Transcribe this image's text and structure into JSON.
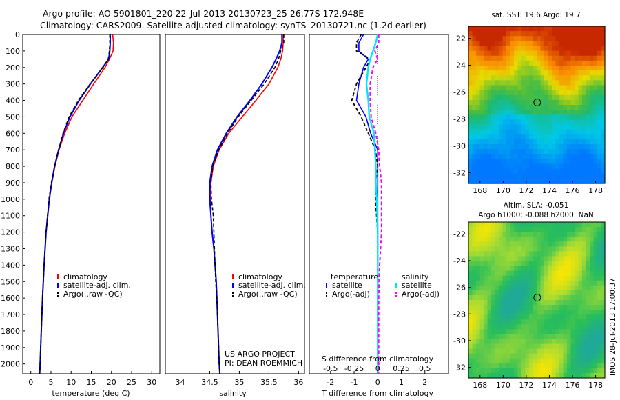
{
  "header": {
    "line1": "Argo profile: AO 5901801_220 22-Jul-2013 20130723_25 26.77S 172.948E",
    "line2": "Climatology: CARS2009. Satellite-adjusted climatology: synTS_20130721.nc (1.2d earlier)"
  },
  "colors": {
    "climatology": "#ff0000",
    "satellite": "#0000ff",
    "argo": "#000000",
    "sat_salinity": "#00e5ff",
    "argo_salinity_adj": "#ff00ff"
  },
  "depth_axis": {
    "ticks": [
      "0",
      "100",
      "200",
      "300",
      "400",
      "500",
      "600",
      "700",
      "800",
      "900",
      "1000",
      "1100",
      "1200",
      "1300",
      "1400",
      "1500",
      "1600",
      "1700",
      "1800",
      "1900",
      "2000"
    ],
    "ylim": [
      0,
      2060
    ],
    "reversed": true
  },
  "panels": {
    "temperature": {
      "xlabel": "temperature (deg C)",
      "xticks": [
        "0",
        "5",
        "10",
        "15",
        "20",
        "25",
        "30"
      ],
      "legend": [
        "climatology",
        "satellite-adj. clim.",
        "Argo(..raw -QC)"
      ]
    },
    "salinity": {
      "xlabel": "salinity",
      "xticks": [
        "34",
        "34.5",
        "35",
        "35.5",
        "36"
      ],
      "legend": [
        "climatology",
        "satellite-adj. clim.",
        "Argo(..raw -QC)"
      ],
      "credit1": "US ARGO PROJECT",
      "credit2": "PI: DEAN ROEMMICH"
    },
    "difference": {
      "top_label": "S difference from climatology",
      "top_ticks": [
        "-0.5",
        "-0.25",
        "0",
        "0.25",
        "0.5"
      ],
      "bottom_ticks": [
        "-2",
        "-1",
        "0",
        "1",
        "2"
      ],
      "xlabel": "T difference from climatology",
      "legend_temp_title": "temperature",
      "legend_sal_title": "salinity",
      "legend_satellite": "satellite",
      "legend_argo": "Argo(-adj)"
    }
  },
  "maps": {
    "sst_title": "sat. SST: 19.6 Argo: 19.7",
    "sla_title1": "Altim. SLA: -0.051",
    "sla_title2": "Argo h1000: -0.088 h2000: NaN",
    "xticks": [
      "168",
      "170",
      "172",
      "174",
      "176",
      "178"
    ],
    "yticks": [
      "-22",
      "-24",
      "-26",
      "-28",
      "-30",
      "-32"
    ],
    "side_label": "IMOS 28-Jul-2013 17:00:37"
  },
  "chart_data": [
    {
      "type": "line",
      "title": "",
      "xlabel": "temperature (deg C)",
      "ylabel": "",
      "xlim": [
        -2,
        32
      ],
      "ylim": [
        2060,
        0
      ],
      "depth": [
        0,
        50,
        100,
        150,
        200,
        300,
        400,
        500,
        600,
        700,
        800,
        900,
        1000,
        1200,
        1400,
        1600,
        1800,
        2000,
        2060
      ],
      "series": [
        {
          "name": "climatology",
          "values": [
            20.3,
            20.5,
            20.4,
            19.5,
            18.4,
            15.6,
            12.9,
            10.2,
            8.4,
            7.0,
            6.0,
            5.2,
            4.6,
            3.8,
            3.3,
            2.9,
            2.6,
            2.3,
            2.2
          ]
        },
        {
          "name": "satellite-adj. clim.",
          "values": [
            19.7,
            19.7,
            19.6,
            19.3,
            17.8,
            14.8,
            12.0,
            9.7,
            8.1,
            6.9,
            5.9,
            5.2,
            4.6,
            3.8,
            3.3,
            2.9,
            2.6,
            2.3,
            2.2
          ]
        },
        {
          "name": "Argo(..raw -QC)",
          "values": [
            19.6,
            19.6,
            19.5,
            19.2,
            17.9,
            14.7,
            11.8,
            9.5,
            8.0,
            6.9,
            5.9,
            5.1,
            4.5,
            3.8,
            3.3,
            2.9,
            2.6,
            2.3,
            2.2
          ]
        }
      ]
    },
    {
      "type": "line",
      "title": "",
      "xlabel": "salinity",
      "ylabel": "",
      "xlim": [
        33.75,
        36.1
      ],
      "ylim": [
        2060,
        0
      ],
      "depth": [
        0,
        50,
        100,
        150,
        200,
        300,
        400,
        500,
        600,
        700,
        800,
        900,
        1000,
        1100,
        1200,
        1300,
        1400,
        1500,
        1600,
        1800,
        2000,
        2060
      ],
      "series": [
        {
          "name": "climatology",
          "values": [
            35.74,
            35.74,
            35.73,
            35.7,
            35.65,
            35.5,
            35.28,
            35.05,
            34.82,
            34.66,
            34.56,
            34.52,
            34.51,
            34.52,
            34.54,
            34.57,
            34.59,
            34.61,
            34.62,
            34.64,
            34.66,
            34.67
          ]
        },
        {
          "name": "satellite-adj. clim.",
          "values": [
            35.72,
            35.72,
            35.68,
            35.62,
            35.55,
            35.38,
            35.18,
            34.96,
            34.78,
            34.63,
            34.54,
            34.5,
            34.5,
            34.52,
            34.54,
            34.57,
            34.59,
            34.61,
            34.62,
            34.64,
            34.66,
            34.67
          ]
        },
        {
          "name": "Argo(..raw -QC)",
          "values": [
            35.75,
            35.75,
            35.7,
            35.66,
            35.6,
            35.42,
            35.2,
            34.98,
            34.8,
            34.65,
            34.55,
            34.52,
            34.53,
            34.56,
            34.57,
            34.58,
            34.59,
            34.6,
            34.62,
            34.64,
            34.66,
            34.67
          ]
        }
      ]
    },
    {
      "type": "line",
      "title": "",
      "xlabel": "T difference from climatology",
      "ylabel": "",
      "xlim": [
        -2.9,
        3.0
      ],
      "ylim": [
        2060,
        0
      ],
      "depth": [
        0,
        50,
        100,
        150,
        200,
        300,
        400,
        500,
        600,
        700,
        800,
        900,
        1000,
        1200,
        1400,
        1600,
        1800,
        2000,
        2060
      ],
      "series": [
        {
          "name": "temperature satellite",
          "values": [
            -0.6,
            -0.8,
            -0.8,
            -0.4,
            -0.6,
            -0.8,
            -0.9,
            -0.5,
            -0.3,
            0,
            0,
            0,
            0,
            0,
            0,
            0,
            0,
            0,
            0
          ]
        },
        {
          "name": "temperature Argo(-adj)",
          "values": [
            -0.7,
            -0.9,
            -0.9,
            -0.3,
            -0.5,
            -0.9,
            -1.1,
            -0.7,
            -0.4,
            -0.1,
            0,
            -0.1,
            -0.1,
            0,
            0,
            0,
            0,
            0,
            0
          ]
        },
        {
          "name": "salinity satellite",
          "values": [
            0,
            -0.02,
            -0.05,
            -0.08,
            -0.1,
            -0.12,
            -0.1,
            -0.09,
            -0.04,
            -0.03,
            -0.02,
            -0.02,
            -0.01,
            0,
            0,
            0,
            0,
            0,
            0
          ]
        },
        {
          "name": "salinity Argo(-adj)",
          "values": [
            0.01,
            0.01,
            -0.03,
            0.0,
            -0.05,
            -0.08,
            -0.08,
            -0.07,
            -0.02,
            0.01,
            0.02,
            0.04,
            0.04,
            0.04,
            0.02,
            0.01,
            0.01,
            0.01,
            0.01
          ]
        }
      ]
    }
  ]
}
